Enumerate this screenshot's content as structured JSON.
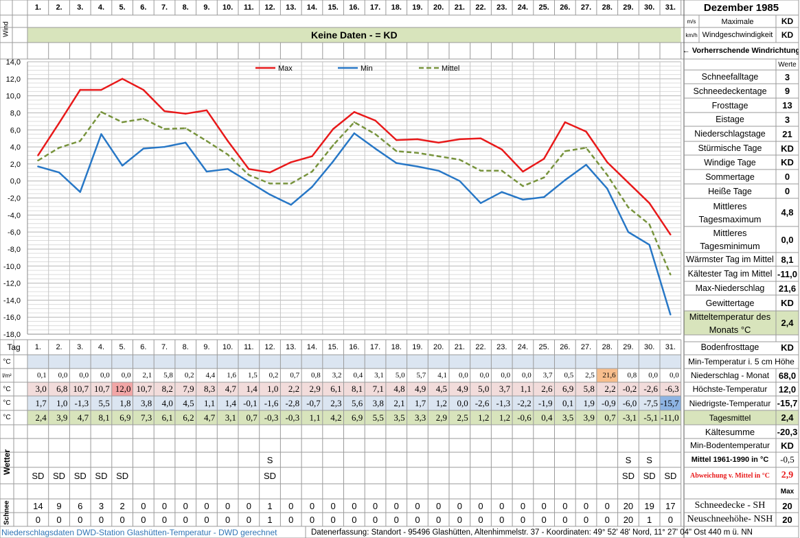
{
  "month_title": "Dezember 1985",
  "days": [
    "1.",
    "2.",
    "3.",
    "4.",
    "5.",
    "6.",
    "7.",
    "8.",
    "9.",
    "10.",
    "11.",
    "12.",
    "13.",
    "14.",
    "15.",
    "16.",
    "17.",
    "18.",
    "19.",
    "20.",
    "21.",
    "22.",
    "23.",
    "24.",
    "25.",
    "26.",
    "27.",
    "28.",
    "29.",
    "30.",
    "31."
  ],
  "wind": {
    "label": "Wind",
    "unit_ms": "m/s",
    "unit_kmh": "km/h",
    "no_data_text": "Keine Daten -  = KD",
    "max_label": "Maximale Windgeschwindigkeit",
    "max_ms": "KD",
    "max_kmh": "KD",
    "direction_label": "← Vorherrschende Windrichtung"
  },
  "stats_header": "Werte",
  "stats": [
    {
      "label": "Schneefalltage",
      "value": "3"
    },
    {
      "label": "Schneedeckentage",
      "value": "9"
    },
    {
      "label": "Frosttage",
      "value": "13"
    },
    {
      "label": "Eistage",
      "value": "3"
    },
    {
      "label": "Niederschlagstage",
      "value": "21"
    },
    {
      "label": "Stürmische Tage",
      "value": "KD"
    },
    {
      "label": "Windige Tage",
      "value": "KD"
    },
    {
      "label": "Sommertage",
      "value": "0"
    },
    {
      "label": "Heiße Tage",
      "value": "0"
    },
    {
      "label": "Mittleres Tagesmaximum",
      "value": "4,8"
    },
    {
      "label": "Mittleres Tagesminimum",
      "value": "0,0"
    },
    {
      "label": "Wärmster Tag im Mittel",
      "value": "8,1"
    },
    {
      "label": "Kältester Tag im Mittel",
      "value": "-11,0"
    },
    {
      "label": "Max-Niederschlag",
      "value": "21,6"
    },
    {
      "label": "Gewittertage",
      "value": "KD"
    },
    {
      "label": "Mitteltemperatur des Monats °C",
      "value": "2,4"
    },
    {
      "label": "Bodenfrosttage",
      "value": "KD"
    }
  ],
  "tag_label": "Tag",
  "table": {
    "min5_unit": "°C",
    "min5_label": "Min-Temperatur i. 5 cm Höhe",
    "precip_unit": "l/m²",
    "precip_label": "Niederschlag - Monat",
    "precip_total": "68,0",
    "precip": [
      "0,1",
      "0,0",
      "0,0",
      "0,0",
      "0,0",
      "2,1",
      "5,8",
      "0,2",
      "4,4",
      "1,6",
      "1,5",
      "0,2",
      "0,7",
      "0,8",
      "3,2",
      "0,4",
      "3,1",
      "5,0",
      "5,7",
      "4,1",
      "0,0",
      "0,0",
      "0,0",
      "0,0",
      "3,7",
      "0,5",
      "2,5",
      "21,6",
      "0,8",
      "0,0",
      "0,0"
    ],
    "max_unit": "°C",
    "max_label": "Höchste-Temperatur",
    "max_total": "12,0",
    "tmax": [
      "3,0",
      "6,8",
      "10,7",
      "10,7",
      "12,0",
      "10,7",
      "8,2",
      "7,9",
      "8,3",
      "4,7",
      "1,4",
      "1,0",
      "2,2",
      "2,9",
      "6,1",
      "8,1",
      "7,1",
      "4,8",
      "4,9",
      "4,5",
      "4,9",
      "5,0",
      "3,7",
      "1,1",
      "2,6",
      "6,9",
      "5,8",
      "2,2",
      "-0,2",
      "-2,6",
      "-6,3"
    ],
    "min_unit": "°C",
    "min_label": "Niedrigste-Temperatur",
    "min_total": "-15,7",
    "tmin": [
      "1,7",
      "1,0",
      "-1,3",
      "5,5",
      "1,8",
      "3,8",
      "4,0",
      "4,5",
      "1,1",
      "1,4",
      "-0,1",
      "-1,6",
      "-2,8",
      "-0,7",
      "2,3",
      "5,6",
      "3,8",
      "2,1",
      "1,7",
      "1,2",
      "0,0",
      "-2,6",
      "-1,3",
      "-2,2",
      "-1,9",
      "0,1",
      "1,9",
      "-0,9",
      "-6,0",
      "-7,5",
      "-15,7"
    ],
    "mean_unit": "°C",
    "mean_label": "Tagesmittel",
    "mean_total": "2,4",
    "tmean": [
      "2,4",
      "3,9",
      "4,7",
      "8,1",
      "6,9",
      "7,3",
      "6,1",
      "6,2",
      "4,7",
      "3,1",
      "0,7",
      "-0,3",
      "-0,3",
      "1,1",
      "4,2",
      "6,9",
      "5,5",
      "3,5",
      "3,3",
      "2,9",
      "2,5",
      "1,2",
      "1,2",
      "-0,6",
      "0,4",
      "3,5",
      "3,9",
      "0,7",
      "-3,1",
      "-5,1",
      "-11,0"
    ]
  },
  "lower_stats": {
    "kaeltesumme_label": "Kältesumme",
    "kaeltesumme_value": "-20,3",
    "min_boden_label": "Min-Bodentemperatur",
    "min_boden_value": "KD",
    "mittel_label": "Mittel 1961-1990 in °C",
    "mittel_value": "-0,5",
    "abweichung_label": "Abweichung v. Mittel in °C",
    "abweichung_value": "2,9",
    "max_label": "Max"
  },
  "wetter": {
    "label": "Wetter",
    "row_s": [
      "",
      "",
      "",
      "",
      "",
      "",
      "",
      "",
      "",
      "",
      "",
      "S",
      "",
      "",
      "",
      "",
      "",
      "",
      "",
      "",
      "",
      "",
      "",
      "",
      "",
      "",
      "",
      "",
      "S",
      "S",
      ""
    ],
    "row_sd": [
      "SD",
      "SD",
      "SD",
      "SD",
      "SD",
      "",
      "",
      "",
      "",
      "",
      "",
      "SD",
      "",
      "",
      "",
      "",
      "",
      "",
      "",
      "",
      "",
      "",
      "",
      "",
      "",
      "",
      "",
      "",
      "SD",
      "SD",
      "SD"
    ]
  },
  "schnee": {
    "label": "Schnee",
    "sh": [
      "14",
      "9",
      "6",
      "3",
      "2",
      "0",
      "0",
      "0",
      "0",
      "0",
      "0",
      "1",
      "0",
      "0",
      "0",
      "0",
      "0",
      "0",
      "0",
      "0",
      "0",
      "0",
      "0",
      "0",
      "0",
      "0",
      "0",
      "0",
      "20",
      "19",
      "17"
    ],
    "nsh": [
      "0",
      "0",
      "0",
      "0",
      "0",
      "0",
      "0",
      "0",
      "0",
      "0",
      "0",
      "1",
      "0",
      "0",
      "0",
      "0",
      "0",
      "0",
      "0",
      "0",
      "0",
      "0",
      "0",
      "0",
      "0",
      "0",
      "0",
      "0",
      "20",
      "1",
      "0"
    ],
    "sh_label": "Schneedecke -   SH",
    "sh_max": "20",
    "nsh_label": "Neuschneehöhe- NSH",
    "nsh_max": "20"
  },
  "footer": {
    "left": "Niederschlagsdaten DWD-Station Glashütten-Temperatur -  DWD gerechnet",
    "right": "Datenerfassung: Standort -  95496  Glashütten, Altenhimmelstr. 37 - Koordinaten:  49° 52' 48' Nord,  11° 27' 04\" Ost  440 m ü. NN"
  },
  "colors": {
    "max_line": "#e8191a",
    "min_line": "#2777c6",
    "mean_line": "#77933c",
    "wind_band": "#d8e4bc",
    "max_row": "#f2dcdb",
    "min_row": "#dbe5f1",
    "mean_row": "#d8e4bc",
    "min5_row": "#dbe5f1",
    "highlight_max": "#f2a6a6",
    "highlight_precip": "#f8be8c",
    "highlight_min": "#8eb4e3",
    "footer_left": "#2f75b5"
  },
  "chart_data": {
    "type": "line",
    "x": [
      "1.",
      "2.",
      "3.",
      "4.",
      "5.",
      "6.",
      "7.",
      "8.",
      "9.",
      "10.",
      "11.",
      "12.",
      "13.",
      "14.",
      "15.",
      "16.",
      "17.",
      "18.",
      "19.",
      "20.",
      "21.",
      "22.",
      "23.",
      "24.",
      "25.",
      "26.",
      "27.",
      "28.",
      "29.",
      "30.",
      "31."
    ],
    "ylim": [
      -18,
      14
    ],
    "yticks": [
      "14,0",
      "12,0",
      "10,0",
      "8,0",
      "6,0",
      "4,0",
      "2,0",
      "0,0",
      "-2,0",
      "-4,0",
      "-6,0",
      "-8,0",
      "-10,0",
      "-12,0",
      "-14,0",
      "-16,0",
      "-18,0"
    ],
    "grid": true,
    "legend_position": "top",
    "series": [
      {
        "name": "Max",
        "color": "#e8191a",
        "style": "solid",
        "values": [
          3.0,
          6.8,
          10.7,
          10.7,
          12.0,
          10.7,
          8.2,
          7.9,
          8.3,
          4.7,
          1.4,
          1.0,
          2.2,
          2.9,
          6.1,
          8.1,
          7.1,
          4.8,
          4.9,
          4.5,
          4.9,
          5.0,
          3.7,
          1.1,
          2.6,
          6.9,
          5.8,
          2.2,
          -0.2,
          -2.6,
          -6.3
        ]
      },
      {
        "name": "Min",
        "color": "#2777c6",
        "style": "solid",
        "values": [
          1.7,
          1.0,
          -1.3,
          5.5,
          1.8,
          3.8,
          4.0,
          4.5,
          1.1,
          1.4,
          -0.1,
          -1.6,
          -2.8,
          -0.7,
          2.3,
          5.6,
          3.8,
          2.1,
          1.7,
          1.2,
          0.0,
          -2.6,
          -1.3,
          -2.2,
          -1.9,
          0.1,
          1.9,
          -0.9,
          -6.0,
          -7.5,
          -15.7
        ]
      },
      {
        "name": "Mittel",
        "color": "#77933c",
        "style": "dashed",
        "values": [
          2.4,
          3.9,
          4.7,
          8.1,
          6.9,
          7.3,
          6.1,
          6.2,
          4.7,
          3.1,
          0.7,
          -0.3,
          -0.3,
          1.1,
          4.2,
          6.9,
          5.5,
          3.5,
          3.3,
          2.9,
          2.5,
          1.2,
          1.2,
          -0.6,
          0.4,
          3.5,
          3.9,
          0.7,
          -3.1,
          -5.1,
          -11.0
        ]
      }
    ]
  }
}
